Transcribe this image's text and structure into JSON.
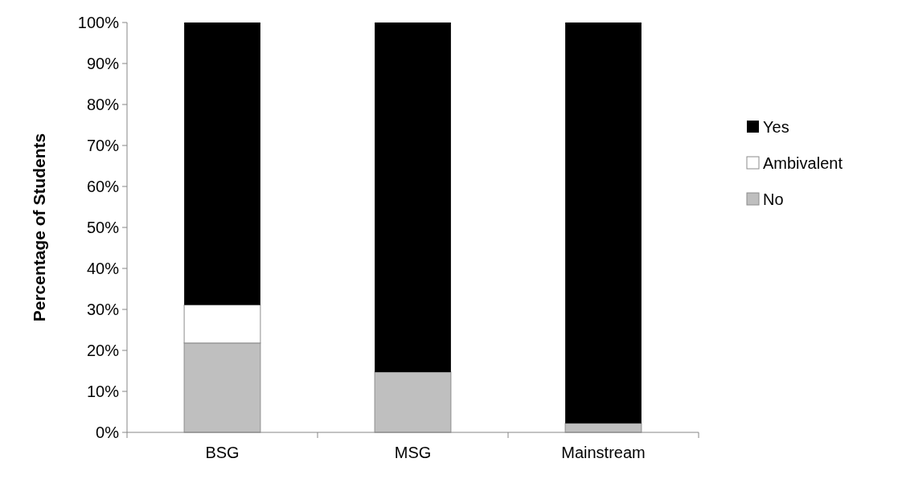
{
  "chart_data": {
    "type": "bar",
    "stacked": true,
    "ylabel": "Percentage of Students",
    "categories": [
      "BSG",
      "MSG",
      "Mainstream"
    ],
    "series": [
      {
        "name": "No",
        "color": "#bfbfbf",
        "values": [
          21.8,
          14.7,
          2.2
        ]
      },
      {
        "name": "Ambivalent",
        "color": "#ffffff",
        "values": [
          9.3,
          0,
          0
        ]
      },
      {
        "name": "Yes",
        "color": "#000000",
        "values": [
          68.9,
          85.3,
          97.8
        ]
      }
    ],
    "ylim": [
      0,
      100
    ],
    "yticks": [
      {
        "value": 0,
        "label": "0%"
      },
      {
        "value": 10,
        "label": "10%"
      },
      {
        "value": 20,
        "label": "20%"
      },
      {
        "value": 30,
        "label": "30%"
      },
      {
        "value": 40,
        "label": "40%"
      },
      {
        "value": 50,
        "label": "50%"
      },
      {
        "value": 60,
        "label": "60%"
      },
      {
        "value": 70,
        "label": "70%"
      },
      {
        "value": 80,
        "label": "80%"
      },
      {
        "value": 90,
        "label": "90%"
      },
      {
        "value": 100,
        "label": "100%"
      }
    ],
    "legend": "right",
    "grid": false
  }
}
